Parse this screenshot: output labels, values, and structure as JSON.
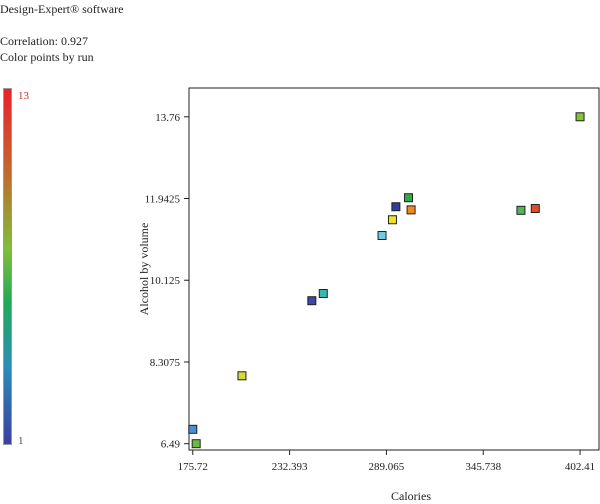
{
  "header": {
    "software": "Design-Expert® software",
    "correlation": "Correlation: 0.927",
    "color_points_by": "Color points by run"
  },
  "colorbar": {
    "max_label": "13",
    "min_label": "1",
    "colors": [
      "#e8232a",
      "#c6642d",
      "#7fbf3a",
      "#22aa55",
      "#2a8fb8",
      "#3a3fa0"
    ]
  },
  "chart_data": {
    "type": "scatter",
    "title": "",
    "xlabel": "Calories",
    "ylabel": "Alcohol by volume",
    "xlim": [
      173.5,
      413.5
    ],
    "ylim": [
      6.35,
      14.4
    ],
    "xticks": [
      175.72,
      232.393,
      289.065,
      345.738,
      402.41
    ],
    "xtick_labels": [
      "175.72",
      "232.393",
      "289.065",
      "345.738",
      "402.41"
    ],
    "yticks": [
      6.49,
      8.3075,
      10.125,
      11.9425,
      13.76
    ],
    "ytick_labels": [
      "6.49",
      "8.3075",
      "10.125",
      "11.9425",
      "13.76"
    ],
    "color_by": "run",
    "points": [
      {
        "x": 175.72,
        "y": 6.81,
        "color": "#4a8fd6"
      },
      {
        "x": 177.7,
        "y": 6.49,
        "color": "#6dbb3c"
      },
      {
        "x": 204.5,
        "y": 8.0,
        "color": "#d9d935"
      },
      {
        "x": 245.4,
        "y": 9.67,
        "color": "#3a48a6"
      },
      {
        "x": 252.1,
        "y": 9.83,
        "color": "#3ab8b0"
      },
      {
        "x": 286.5,
        "y": 11.12,
        "color": "#6ccbe8"
      },
      {
        "x": 292.6,
        "y": 11.47,
        "color": "#f2e21c"
      },
      {
        "x": 294.6,
        "y": 11.76,
        "color": "#2f3f98"
      },
      {
        "x": 302.0,
        "y": 11.96,
        "color": "#2eaa47"
      },
      {
        "x": 303.5,
        "y": 11.69,
        "color": "#f08a1f"
      },
      {
        "x": 367.8,
        "y": 11.68,
        "color": "#4fb55a"
      },
      {
        "x": 376.2,
        "y": 11.72,
        "color": "#e84a22"
      },
      {
        "x": 402.41,
        "y": 13.76,
        "color": "#86c23a"
      }
    ]
  }
}
